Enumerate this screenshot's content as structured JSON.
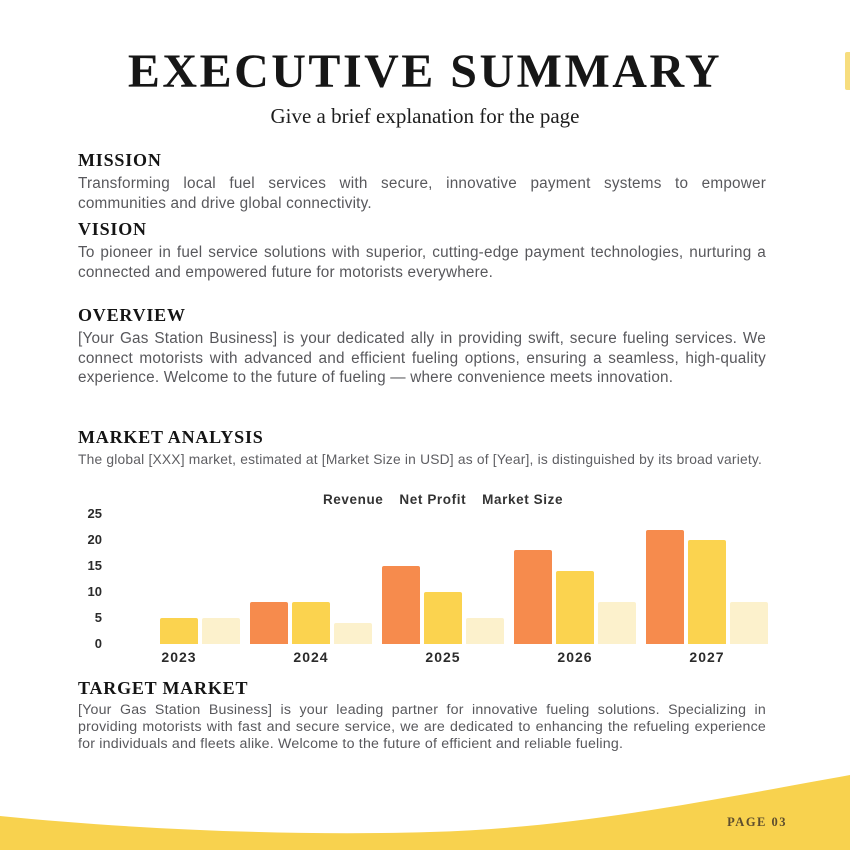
{
  "page": {
    "title": "EXECUTIVE SUMMARY",
    "subtitle": "Give a brief explanation for the page"
  },
  "sections": [
    {
      "heading": "MISSION",
      "body": "Transforming local fuel services with secure, innovative payment systems to empower communities and drive global connectivity."
    },
    {
      "heading": "VISION",
      "body": "To pioneer in fuel service solutions with superior, cutting-edge payment technologies, nurturing a connected and empowered future for motorists everywhere."
    },
    {
      "heading": "OVERVIEW",
      "body": "[Your Gas Station Business] is your dedicated ally in providing swift, secure fueling services. We connect motorists with advanced and efficient fueling options, ensuring a seamless, high-quality experience. Welcome to the future of fueling — where convenience meets innovation."
    },
    {
      "heading": "MARKET ANALYSIS",
      "body": "The global [XXX] market, estimated at [Market Size in USD] as of [Year], is distinguished by its broad variety."
    },
    {
      "heading": "TARGET MARKET",
      "body": "[Your Gas Station Business] is your leading partner for innovative fueling solutions. Specializing in providing motorists with fast and secure service, we are dedicated to enhancing the refueling experience for individuals and fleets alike. Welcome to the future of efficient and reliable fueling."
    }
  ],
  "chart_data": {
    "type": "bar",
    "title": "Revenue  Net Profit  Market Size",
    "categories": [
      "2023",
      "2024",
      "2025",
      "2026",
      "2027"
    ],
    "series": [
      {
        "name": "Revenue",
        "color": "#f68b4d",
        "values": [
          0,
          8,
          15,
          18,
          22
        ]
      },
      {
        "name": "Net Profit",
        "color": "#fbd34f",
        "values": [
          5,
          8,
          10,
          14,
          20
        ]
      },
      {
        "name": "Market Size",
        "color": "#fcf1cc",
        "values": [
          5,
          4,
          5,
          8,
          8
        ]
      }
    ],
    "ylim": [
      0,
      25
    ],
    "yticks": [
      0,
      5,
      10,
      15,
      20,
      25
    ],
    "xlabel": "",
    "ylabel": "",
    "grid": false,
    "legend_position": "top"
  },
  "footer": {
    "page_label": "PAGE 03",
    "wave_color": "#f8d24e"
  },
  "colors": {
    "title_text": "#161616",
    "body_text": "#58585c",
    "accent_orange": "#f68b4d",
    "accent_yellow": "#fbd34f",
    "accent_pale": "#fcf1cc",
    "footer_yellow": "#f8d24e",
    "page_num_text": "#5d4d2e"
  }
}
